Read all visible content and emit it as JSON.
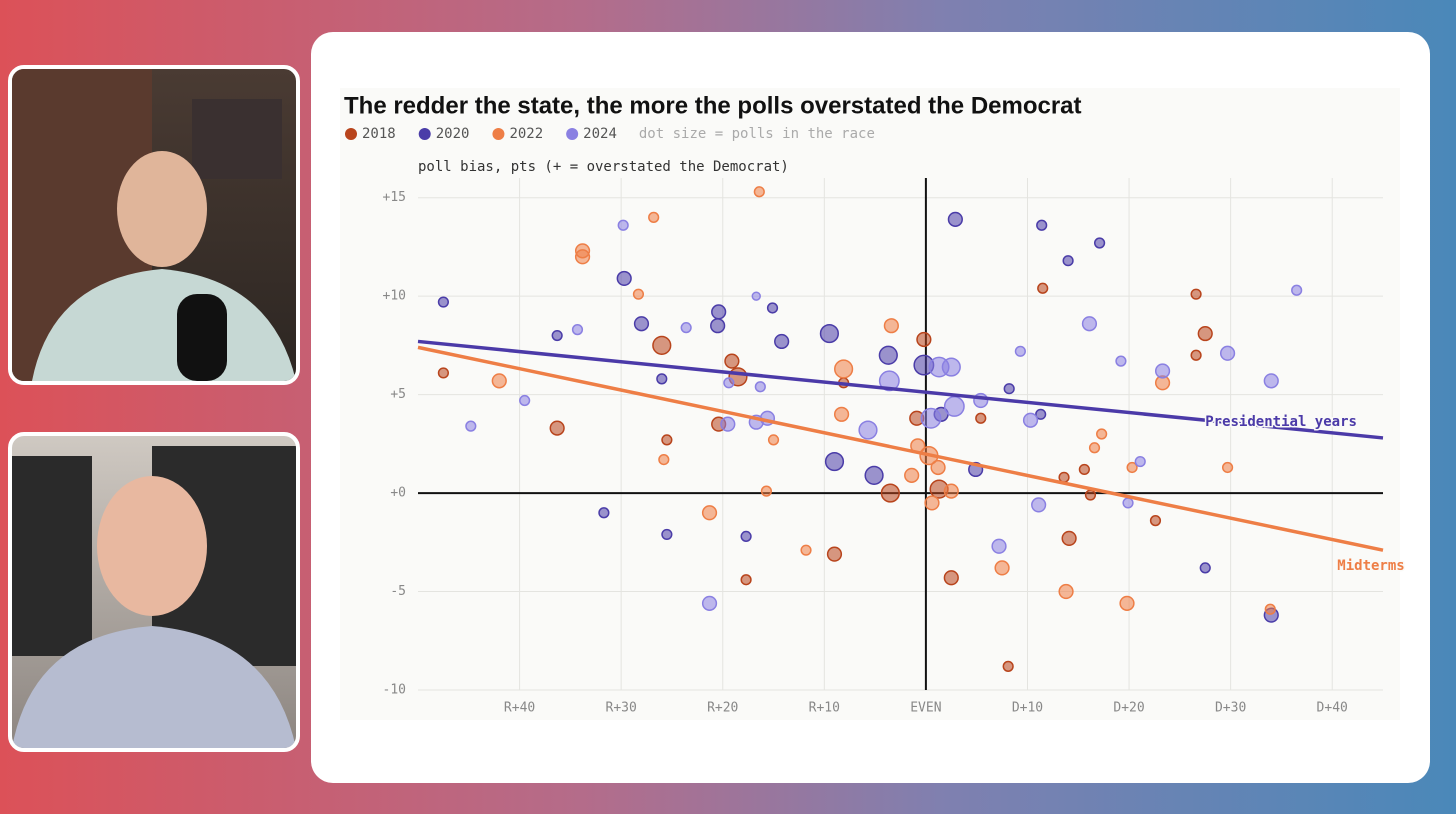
{
  "chart_data": {
    "type": "scatter",
    "title": "The redder the state, the more the polls overstated the Democrat",
    "size_note": "dot size = polls in the race",
    "y_label": "poll bias, pts (+ = overstated the Democrat)",
    "xlim": [
      -50,
      45
    ],
    "ylim": [
      -10,
      16
    ],
    "xticks": [
      {
        "value": -40,
        "label": "R+40"
      },
      {
        "value": -30,
        "label": "R+30"
      },
      {
        "value": -20,
        "label": "R+20"
      },
      {
        "value": -10,
        "label": "R+10"
      },
      {
        "value": 0,
        "label": "EVEN"
      },
      {
        "value": 10,
        "label": "D+10"
      },
      {
        "value": 20,
        "label": "D+20"
      },
      {
        "value": 30,
        "label": "D+30"
      },
      {
        "value": 40,
        "label": "D+40"
      }
    ],
    "yticks": [
      {
        "value": 15,
        "label": "+15"
      },
      {
        "value": 10,
        "label": "+10"
      },
      {
        "value": 5,
        "label": "+5"
      },
      {
        "value": 0,
        "label": "+0"
      },
      -5,
      -10
    ],
    "grid": true,
    "series": [
      {
        "name": "2018",
        "color": "#b8441c",
        "x": [
          -47.5,
          -36.3,
          -25.5,
          -26,
          -19.1,
          -18.5,
          -20.4,
          -17.7,
          -9,
          -8.1,
          -0.2,
          2.5,
          5.4,
          8.1,
          11.5,
          13.6,
          14.1,
          15.6,
          16.2,
          22.6,
          26.6,
          26.6,
          27.5,
          -0.9,
          -3.5,
          1.3
        ],
        "values": [
          6.1,
          3.3,
          2.7,
          7.5,
          6.7,
          5.9,
          3.5,
          -4.4,
          -3.1,
          5.6,
          7.8,
          -4.3,
          3.8,
          -8.8,
          10.4,
          0.8,
          -2.3,
          1.2,
          -0.1,
          -1.4,
          10.1,
          7.0,
          8.1,
          3.8,
          0,
          0.2
        ],
        "sizes": [
          3,
          6,
          3,
          10,
          6,
          10,
          6,
          3,
          6,
          3,
          6,
          6,
          3,
          3,
          3,
          3,
          6,
          3,
          3,
          3,
          3,
          3,
          6,
          6,
          10,
          10
        ]
      },
      {
        "name": "2020",
        "color": "#4a3ca8",
        "x": [
          -47.5,
          -36.3,
          -31.7,
          -29.7,
          -28,
          -26,
          -25.5,
          -20.4,
          -20.5,
          -17.7,
          -15.1,
          -14.2,
          -9.5,
          -9,
          -5.1,
          -3.7,
          -0.2,
          2.9,
          1.5,
          4.9,
          8.2,
          11.4,
          14,
          11.3,
          17.1,
          27.5,
          34
        ],
        "values": [
          9.7,
          8,
          -1,
          10.9,
          8.6,
          5.8,
          -2.1,
          9.2,
          8.5,
          -2.2,
          9.4,
          7.7,
          8.1,
          1.6,
          0.9,
          7,
          6.5,
          13.9,
          4,
          1.2,
          5.3,
          13.6,
          11.8,
          4,
          12.7,
          -3.8,
          -6.2
        ],
        "sizes": [
          3,
          3,
          3,
          6,
          6,
          3,
          3,
          6,
          6,
          3,
          3,
          6,
          10,
          10,
          10,
          10,
          12,
          6,
          6,
          6,
          3,
          3,
          3,
          3,
          3,
          3,
          6
        ]
      },
      {
        "name": "2022",
        "color": "#ee7e46",
        "x": [
          -42,
          -33.8,
          -33.8,
          -28.3,
          -26.8,
          -25.8,
          -16.4,
          -21.3,
          -15,
          -15.7,
          -11.8,
          -8.3,
          -8.1,
          -3.4,
          -0.8,
          -1.4,
          0.3,
          1.2,
          0.6,
          2.5,
          7.5,
          13.8,
          16.6,
          17.3,
          20.3,
          19.8,
          23.3,
          29.7,
          33.9
        ],
        "values": [
          5.7,
          12.3,
          12,
          10.1,
          14,
          1.7,
          15.3,
          -1,
          2.7,
          0.1,
          -2.9,
          4,
          6.3,
          8.5,
          2.4,
          0.9,
          1.9,
          1.3,
          -0.5,
          0.1,
          -3.8,
          -5,
          2.3,
          3,
          1.3,
          -5.6,
          5.6,
          1.3,
          -5.9
        ],
        "sizes": [
          6,
          6,
          6,
          3,
          3,
          3,
          3,
          6,
          3,
          3,
          3,
          6,
          10,
          6,
          6,
          6,
          10,
          6,
          6,
          6,
          6,
          6,
          3,
          3,
          3,
          6,
          6,
          3,
          3
        ]
      },
      {
        "name": "2024",
        "color": "#8a80e2",
        "x": [
          -44.8,
          -39.5,
          -34.3,
          -29.8,
          -23.6,
          -21.3,
          -19.5,
          -19.4,
          -16.7,
          -16.3,
          -15.6,
          -16.7,
          -5.7,
          -3.6,
          1.3,
          2.5,
          2.8,
          0.5,
          5.4,
          7.2,
          9.3,
          10.3,
          11.1,
          16.1,
          19.2,
          21.1,
          19.9,
          23.3,
          29.7,
          34,
          36.5
        ],
        "values": [
          3.4,
          4.7,
          8.3,
          13.6,
          8.4,
          -5.6,
          3.5,
          5.6,
          10,
          5.4,
          3.8,
          3.6,
          3.2,
          5.7,
          6.4,
          6.4,
          4.4,
          3.8,
          4.7,
          -2.7,
          7.2,
          3.7,
          -0.6,
          8.6,
          6.7,
          1.6,
          -0.5,
          6.2,
          7.1,
          5.7,
          10.3
        ],
        "sizes": [
          3,
          3,
          3,
          3,
          3,
          6,
          6,
          3,
          2,
          3,
          6,
          6,
          10,
          12,
          12,
          10,
          12,
          12,
          6,
          6,
          3,
          6,
          6,
          6,
          3,
          3,
          3,
          6,
          6,
          6,
          3
        ]
      }
    ],
    "trend_lines": [
      {
        "name": "Presidential years",
        "color": "#4b3aa8",
        "x": [
          -50,
          45
        ],
        "values": [
          7.7,
          2.8
        ],
        "label_x": 27.5,
        "label_y": 3.6
      },
      {
        "name": "Midterms",
        "color": "#ee7e46",
        "x": [
          -50,
          45
        ],
        "values": [
          7.4,
          -2.9
        ],
        "label_x": 40.5,
        "label_y": -3.7
      }
    ]
  }
}
